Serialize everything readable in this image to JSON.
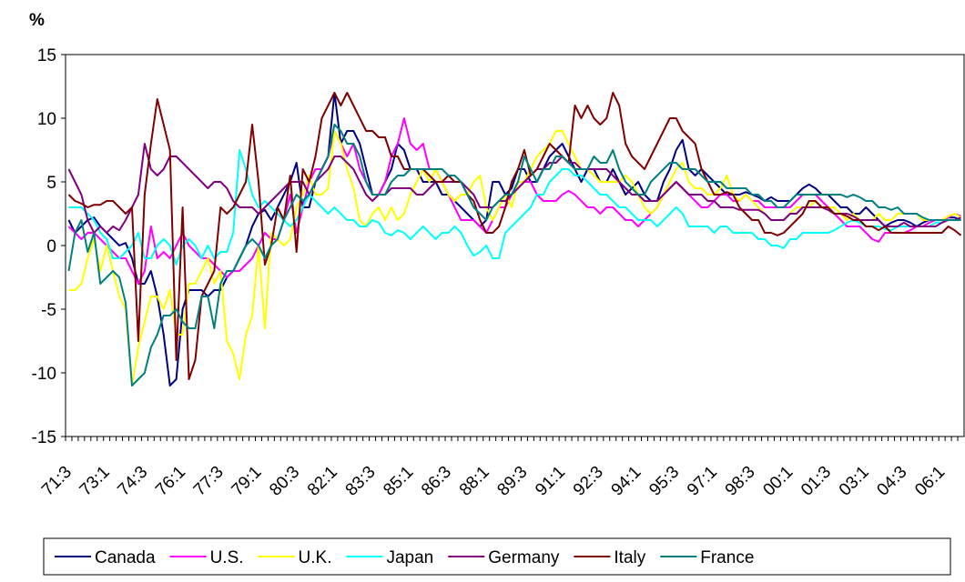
{
  "chart_data": {
    "type": "line",
    "y_label": "%",
    "categories": [
      "71:3",
      null,
      null,
      null,
      null,
      null,
      "73:1",
      null,
      null,
      null,
      null,
      null,
      "74:3",
      null,
      null,
      null,
      null,
      null,
      "76:1",
      null,
      null,
      null,
      null,
      null,
      "77:3",
      null,
      null,
      null,
      null,
      null,
      "79:1",
      null,
      null,
      null,
      null,
      null,
      "80:3",
      null,
      null,
      null,
      null,
      null,
      "82:1",
      null,
      null,
      null,
      null,
      null,
      "83:3",
      null,
      null,
      null,
      null,
      null,
      "85:1",
      null,
      null,
      null,
      null,
      null,
      "86:3",
      null,
      null,
      null,
      null,
      null,
      "88:1",
      null,
      null,
      null,
      null,
      null,
      "89:3",
      null,
      null,
      null,
      null,
      null,
      "91:1",
      null,
      null,
      null,
      null,
      null,
      "92:3",
      null,
      null,
      null,
      null,
      null,
      "94:1",
      null,
      null,
      null,
      null,
      null,
      "95:3",
      null,
      null,
      null,
      null,
      null,
      "97:1",
      null,
      null,
      null,
      null,
      null,
      "98:3",
      null,
      null,
      null,
      null,
      null,
      "00:1",
      null,
      null,
      null,
      null,
      null,
      "01:3",
      null,
      null,
      null,
      null,
      null,
      "03:1",
      null,
      null,
      null,
      null,
      null,
      "04:3",
      null,
      null,
      null,
      null,
      null,
      "06:1",
      null,
      null,
      null
    ],
    "ylim": [
      -15,
      15
    ],
    "yticks": [
      -15,
      -10,
      -5,
      0,
      5,
      10,
      15
    ],
    "grid": false,
    "legend": "bottom",
    "series": [
      {
        "name": "Canada",
        "color": "#000080",
        "values": [
          2,
          1,
          1.5,
          2,
          2.2,
          1.5,
          1,
          0.5,
          0,
          0.2,
          -1,
          -3,
          -3,
          -2,
          -4,
          -7,
          -11,
          -10.5,
          -5,
          -3.5,
          -3.5,
          -3.5,
          -4,
          -3.5,
          -3.5,
          -2.5,
          -2,
          -1,
          0,
          1.5,
          2.5,
          2.8,
          2,
          3,
          4,
          5,
          6.5,
          3,
          3,
          5,
          6,
          7,
          12,
          8,
          9,
          9,
          8,
          6,
          4,
          4,
          5,
          6,
          8,
          7.5,
          6,
          6,
          5,
          5,
          5,
          4,
          4,
          3.5,
          3,
          2.5,
          2,
          1.5,
          2,
          5,
          5,
          4,
          4.5,
          6,
          6,
          5,
          5,
          6,
          7,
          7.5,
          8,
          7,
          6,
          5,
          6,
          6,
          5,
          5,
          6,
          5,
          4,
          4.5,
          5,
          4,
          3.5,
          3.5,
          5,
          6,
          7.5,
          8.3,
          6,
          5.5,
          6,
          5.5,
          5,
          4.5,
          4,
          4,
          4,
          4.2,
          4,
          3.8,
          3.5,
          3.8,
          3.5,
          3.5,
          3.5,
          4,
          4.5,
          4.8,
          4.5,
          4,
          4,
          3.5,
          3,
          3,
          2.5,
          2.5,
          3,
          2.5,
          2,
          1.5,
          1.8,
          2,
          2,
          1.8,
          1.5,
          1.8,
          2,
          2,
          2,
          2.2,
          2.2,
          2
        ]
      },
      {
        "name": "U.S.",
        "color": "#ff00ff",
        "values": [
          1.5,
          1,
          0.5,
          1,
          1,
          0.5,
          0,
          -0.5,
          -1,
          -1,
          -2,
          -3,
          -2,
          1.5,
          -1,
          -0.5,
          -1,
          0,
          1,
          0,
          -0.5,
          -1,
          -1,
          -1.5,
          -2,
          -2.5,
          -2,
          -2,
          -1.5,
          -1,
          0,
          1,
          0.5,
          0.5,
          2,
          4,
          1,
          3,
          5,
          6,
          6,
          7,
          9,
          8,
          7,
          8,
          6,
          5,
          4,
          4,
          5,
          7,
          8,
          10,
          8,
          7.5,
          8,
          6,
          6,
          5,
          4,
          3,
          2,
          2,
          2,
          1.5,
          1,
          2,
          3,
          3,
          4,
          5,
          5,
          5,
          4,
          3.5,
          3.5,
          3.5,
          4,
          4.3,
          4,
          3.5,
          3,
          3,
          2.5,
          3,
          3,
          2.5,
          2,
          2,
          1.5,
          2,
          2.5,
          3,
          4,
          4.5,
          5,
          4.5,
          4,
          3.5,
          3,
          3,
          3.5,
          4,
          4,
          3.5,
          3.5,
          4,
          3.5,
          3.5,
          3,
          3,
          3,
          3,
          3,
          3.5,
          4,
          4,
          4,
          3.5,
          3,
          2.5,
          2,
          1.5,
          1.5,
          1.5,
          1,
          0.5,
          0.3,
          1,
          1,
          1,
          1,
          1.2,
          1.5,
          1.5,
          1.8,
          2,
          2,
          2.2,
          2.5,
          2.3
        ]
      },
      {
        "name": "U.K.",
        "color": "#ffff00",
        "values": [
          -3.5,
          -3.5,
          -3,
          -1,
          0.5,
          -2,
          0,
          -2,
          -4,
          -5,
          -11,
          -8,
          -6,
          -4,
          -4,
          -5,
          -3.5,
          -7,
          -7,
          -3,
          -3,
          -2,
          -1,
          -3,
          -2,
          -7.5,
          -8.5,
          -10.5,
          -7,
          -5.5,
          0,
          -6.5,
          1,
          0.5,
          0,
          0.5,
          3,
          4,
          5.5,
          4,
          4,
          4.5,
          9,
          8,
          6,
          4.5,
          2,
          1.5,
          2.5,
          3,
          2,
          3,
          2,
          2.5,
          4,
          5,
          6,
          5,
          6,
          5,
          4,
          3.5,
          4,
          4,
          5,
          5.5,
          3,
          2,
          3,
          4,
          3,
          5,
          5,
          6,
          7,
          7.5,
          8,
          9,
          9,
          8,
          7,
          6,
          6,
          5.5,
          5,
          5,
          5,
          5,
          5.5,
          5,
          4,
          3,
          2.5,
          3,
          4,
          5,
          6,
          6.5,
          5,
          4.5,
          4.5,
          4,
          4,
          4.5,
          5.5,
          4,
          3.5,
          4,
          3.5,
          3,
          2.5,
          2,
          2,
          2,
          2.5,
          3,
          3,
          3,
          3.5,
          3,
          3,
          3,
          2.5,
          2,
          2.5,
          2,
          2,
          2,
          2.5,
          2,
          2,
          2.5,
          2.5,
          2.5,
          2.5,
          2,
          2,
          2,
          2,
          2.3,
          2.5,
          2.2
        ]
      },
      {
        "name": "Japan",
        "color": "#00ffff",
        "values": [
          3,
          3,
          3,
          2.5,
          2,
          1,
          0.5,
          -1,
          -1,
          -0.5,
          0,
          1,
          -1,
          -1,
          0,
          0.5,
          0,
          -1.5,
          0,
          0.5,
          0,
          -1,
          0,
          -1,
          -0.5,
          -0.5,
          1,
          7.5,
          6,
          4,
          3,
          3.5,
          3,
          2.5,
          2,
          1.5,
          2,
          3,
          4,
          3.5,
          3,
          2.5,
          3,
          2.5,
          2,
          2,
          1.5,
          1.5,
          2,
          1.8,
          1,
          0.8,
          1.2,
          1,
          0.5,
          1,
          1.5,
          1,
          0.5,
          1,
          1,
          1.5,
          1,
          0,
          -0.8,
          -0.5,
          0,
          -1,
          -1,
          1,
          1.5,
          2,
          2.5,
          3,
          4,
          4,
          5,
          5.5,
          6,
          6,
          5.5,
          5.5,
          5,
          4.5,
          4,
          4,
          3.5,
          3,
          3,
          2.5,
          2,
          2,
          2,
          1.5,
          2,
          2.5,
          3,
          2.5,
          1.5,
          1.5,
          1.5,
          1.5,
          1,
          1.5,
          1.5,
          1,
          1,
          1,
          1,
          0.5,
          0.5,
          0,
          0,
          -0.2,
          0.5,
          0.5,
          1,
          1,
          1,
          1,
          1,
          1.2,
          1.5,
          1.8,
          2,
          1.8,
          1.5,
          1.5,
          1.5,
          1.3,
          1.2,
          1.5,
          1.5,
          1.5,
          1.5,
          1.5,
          1.5,
          1.8,
          1.8,
          2,
          2,
          2
        ]
      },
      {
        "name": "Germany",
        "color": "#800080",
        "values": [
          6,
          5,
          4,
          2,
          1,
          1.5,
          1,
          1.5,
          1.2,
          2,
          3,
          4,
          8,
          6,
          5.5,
          6,
          7,
          7,
          6.5,
          6,
          5.5,
          5,
          4.5,
          5,
          5,
          4.5,
          3.5,
          3,
          3,
          3,
          2.5,
          3,
          3.5,
          4,
          4.5,
          5,
          5,
          5,
          4,
          5,
          5.5,
          6,
          7,
          7,
          6.5,
          6,
          5,
          4,
          3.5,
          4,
          4,
          4.5,
          4.5,
          4.5,
          4.5,
          4,
          4,
          4.5,
          5,
          5,
          5,
          5,
          5,
          4.5,
          4,
          3,
          3,
          3,
          3.5,
          3.5,
          4,
          4.5,
          5,
          5.5,
          6,
          6,
          6.5,
          6.5,
          7,
          6.5,
          6.5,
          6,
          6,
          6,
          6,
          6,
          5.5,
          5,
          4.5,
          4,
          4,
          3.5,
          3.5,
          3.5,
          4,
          4.5,
          5,
          4.5,
          4,
          4,
          4,
          3.5,
          3.5,
          3,
          3,
          3,
          2.8,
          2.8,
          2.8,
          2.8,
          2.5,
          2,
          2,
          2,
          2.5,
          2.5,
          3,
          3,
          3,
          3,
          2.8,
          2.5,
          2.5,
          2.5,
          2.3,
          2,
          2,
          2,
          2,
          1.5,
          1.5,
          1.5,
          1.8,
          1.5,
          1.5,
          1.5,
          1.5,
          1.5,
          1.8,
          2,
          2,
          2.2
        ]
      },
      {
        "name": "Italy",
        "color": "#800000",
        "values": [
          4,
          3.5,
          3.3,
          3,
          3.2,
          3.2,
          3.5,
          3.5,
          3,
          2.5,
          3,
          -7.5,
          4,
          8,
          11.5,
          9.5,
          7.5,
          -9,
          3,
          -10.5,
          -9,
          -4,
          -3,
          -2,
          3,
          2.5,
          3,
          4,
          5,
          9.5,
          5,
          -1.5,
          0,
          3,
          2,
          5.5,
          -0.5,
          6,
          5,
          7,
          10,
          11,
          12,
          11,
          12,
          11,
          10,
          9,
          9,
          8.5,
          8.5,
          7,
          7,
          6,
          6,
          6,
          6,
          5.5,
          5,
          5,
          5.5,
          5,
          5,
          4,
          3.5,
          2,
          1,
          1,
          1.5,
          3,
          5,
          6,
          7.5,
          5.5,
          6,
          7,
          8,
          7.5,
          7,
          6.5,
          11,
          10,
          11,
          10,
          9.5,
          10,
          12,
          11,
          8,
          7,
          6.5,
          6,
          7,
          8,
          9,
          10,
          10,
          9,
          8.5,
          8,
          6,
          5,
          4,
          4,
          4.2,
          4,
          3,
          2.5,
          2,
          2,
          1,
          1,
          0.8,
          1,
          1.5,
          2,
          2.5,
          3.5,
          3.5,
          3,
          3,
          2.5,
          2.5,
          2.3,
          2,
          2,
          1.5,
          1.5,
          1.2,
          1.5,
          1,
          1,
          1,
          1,
          1,
          1,
          1,
          1,
          1,
          1.5,
          1.2,
          0.8
        ]
      },
      {
        "name": "France",
        "color": "#008080",
        "values": [
          -2,
          1,
          2,
          -0.5,
          1,
          -3,
          -2.5,
          -2,
          -2.5,
          -4.5,
          -11,
          -10.5,
          -10,
          -8,
          -7,
          -5.5,
          -5.5,
          -5,
          -6,
          -6.5,
          -6.5,
          -4,
          -4,
          -6.5,
          -3,
          -2,
          -2,
          -1,
          0,
          0.5,
          0,
          -1,
          0,
          0.5,
          2,
          3,
          4,
          3.5,
          4,
          5,
          6,
          7,
          9.5,
          9,
          8,
          8,
          7,
          5,
          4,
          4,
          4,
          5,
          5.5,
          5.5,
          6,
          6,
          6,
          6,
          6,
          6,
          5.5,
          5.5,
          5,
          4,
          3,
          2.5,
          2,
          3,
          3.5,
          4,
          4,
          5,
          7,
          6,
          5,
          6,
          6,
          7,
          7,
          6.5,
          6,
          6,
          6,
          7,
          6.5,
          6.5,
          7.5,
          6,
          5,
          4.5,
          4,
          4,
          5,
          5.5,
          6,
          6.5,
          6.5,
          6,
          6,
          6,
          5.5,
          5,
          5,
          5,
          4.5,
          4.5,
          4.5,
          4.5,
          4,
          4,
          3.5,
          3.5,
          3,
          3,
          3.5,
          4,
          4,
          4,
          4,
          4,
          4,
          4,
          4,
          3.8,
          4,
          3.8,
          3.5,
          3.5,
          3,
          3,
          2.8,
          3,
          2.5,
          2.5,
          2.5,
          2.2,
          2,
          2,
          2,
          2,
          2,
          2
        ]
      }
    ]
  }
}
